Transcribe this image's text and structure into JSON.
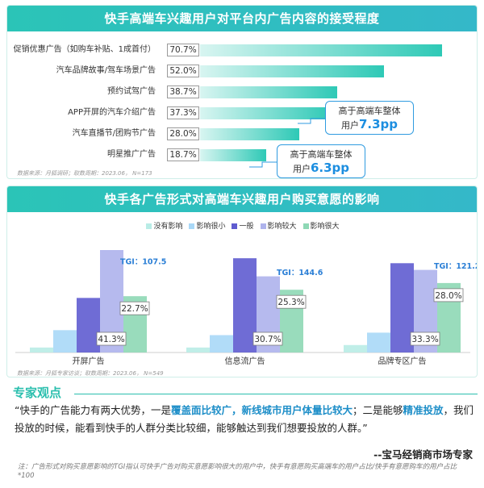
{
  "chart1": {
    "title": "快手高端车兴趣用户对平台内广告内容的接受程度",
    "source": "数据来源：月狐调研；取数周期：2023.06， N=173"
  },
  "callouts": [
    {
      "line1": "高于高端车整体",
      "line2_prefix": "用户",
      "value": "7.3pp"
    },
    {
      "line1": "高于高端车整体",
      "line2_prefix": "用户",
      "value": "6.3pp"
    }
  ],
  "chart2": {
    "title": "快手各广告形式对高端车兴趣用户购买意愿的影响",
    "source": "数据来源：月狐专家访谈；取数周期：2023.06， N=549"
  },
  "colors": {
    "no_effect": "#b9ece6",
    "little": "#a9d8f7",
    "neutral": "#5f5cd0",
    "large": "#aeb3ec",
    "very_large": "#8ed8b5"
  },
  "chart_data": [
    {
      "type": "bar",
      "orientation": "horizontal",
      "categories": [
        "促销优惠广告（如购车补贴、1成首付）",
        "汽车品牌故事/驾车场景广告",
        "预约试驾广告",
        "APP开屏的汽车介绍广告",
        "汽车直播节/团购节广告",
        "明星推广广告"
      ],
      "values": [
        70.7,
        52.0,
        38.7,
        37.3,
        28.0,
        18.7
      ],
      "labels": [
        "70.7%",
        "52.0%",
        "38.7%",
        "37.3%",
        "28.0%",
        "18.7%"
      ],
      "xlim": [
        0,
        80
      ]
    },
    {
      "type": "bar",
      "categories": [
        "开屏广告",
        "信息流广告",
        "品牌专区广告"
      ],
      "series": [
        {
          "name": "没有影响",
          "values": [
            2,
            2,
            3
          ]
        },
        {
          "name": "影响很小",
          "values": [
            9,
            7,
            8
          ]
        },
        {
          "name": "一般",
          "values": [
            22.0,
            38.0,
            36.0
          ]
        },
        {
          "name": "影响较大",
          "values": [
            41.3,
            30.7,
            33.3
          ]
        },
        {
          "name": "影响很大",
          "values": [
            22.7,
            25.3,
            28.0
          ]
        }
      ],
      "value_labels": {
        "影响较大": [
          "41.3%",
          "30.7%",
          "33.3%"
        ],
        "影响很大": [
          "22.7%",
          "25.3%",
          "28.0%"
        ]
      },
      "tgi": [
        "TGI：107.5",
        "TGI：144.6",
        "TGI：121.2"
      ],
      "ylim": [
        0,
        45
      ]
    }
  ],
  "expert": {
    "title": "专家观点",
    "quote_a": "“快手的广告能力有两大优势，一是",
    "quote_hl1": "覆盖面比较广，新线城市用户体量比较大",
    "quote_b": "；二是能够",
    "quote_hl2": "精准投放",
    "quote_c": "，我们投放的时候，能看到快手的人群分类比较细，能够触达到我们想要投放的人群。”",
    "author": "--宝马经销商市场专家"
  },
  "footnote": "注：广告形式对购买意愿影响的TGI指认可快手广告对购买意愿影响很大的用户中，快手有意愿购买高端车的用户占比/快手有意愿购车的用户占比*100"
}
